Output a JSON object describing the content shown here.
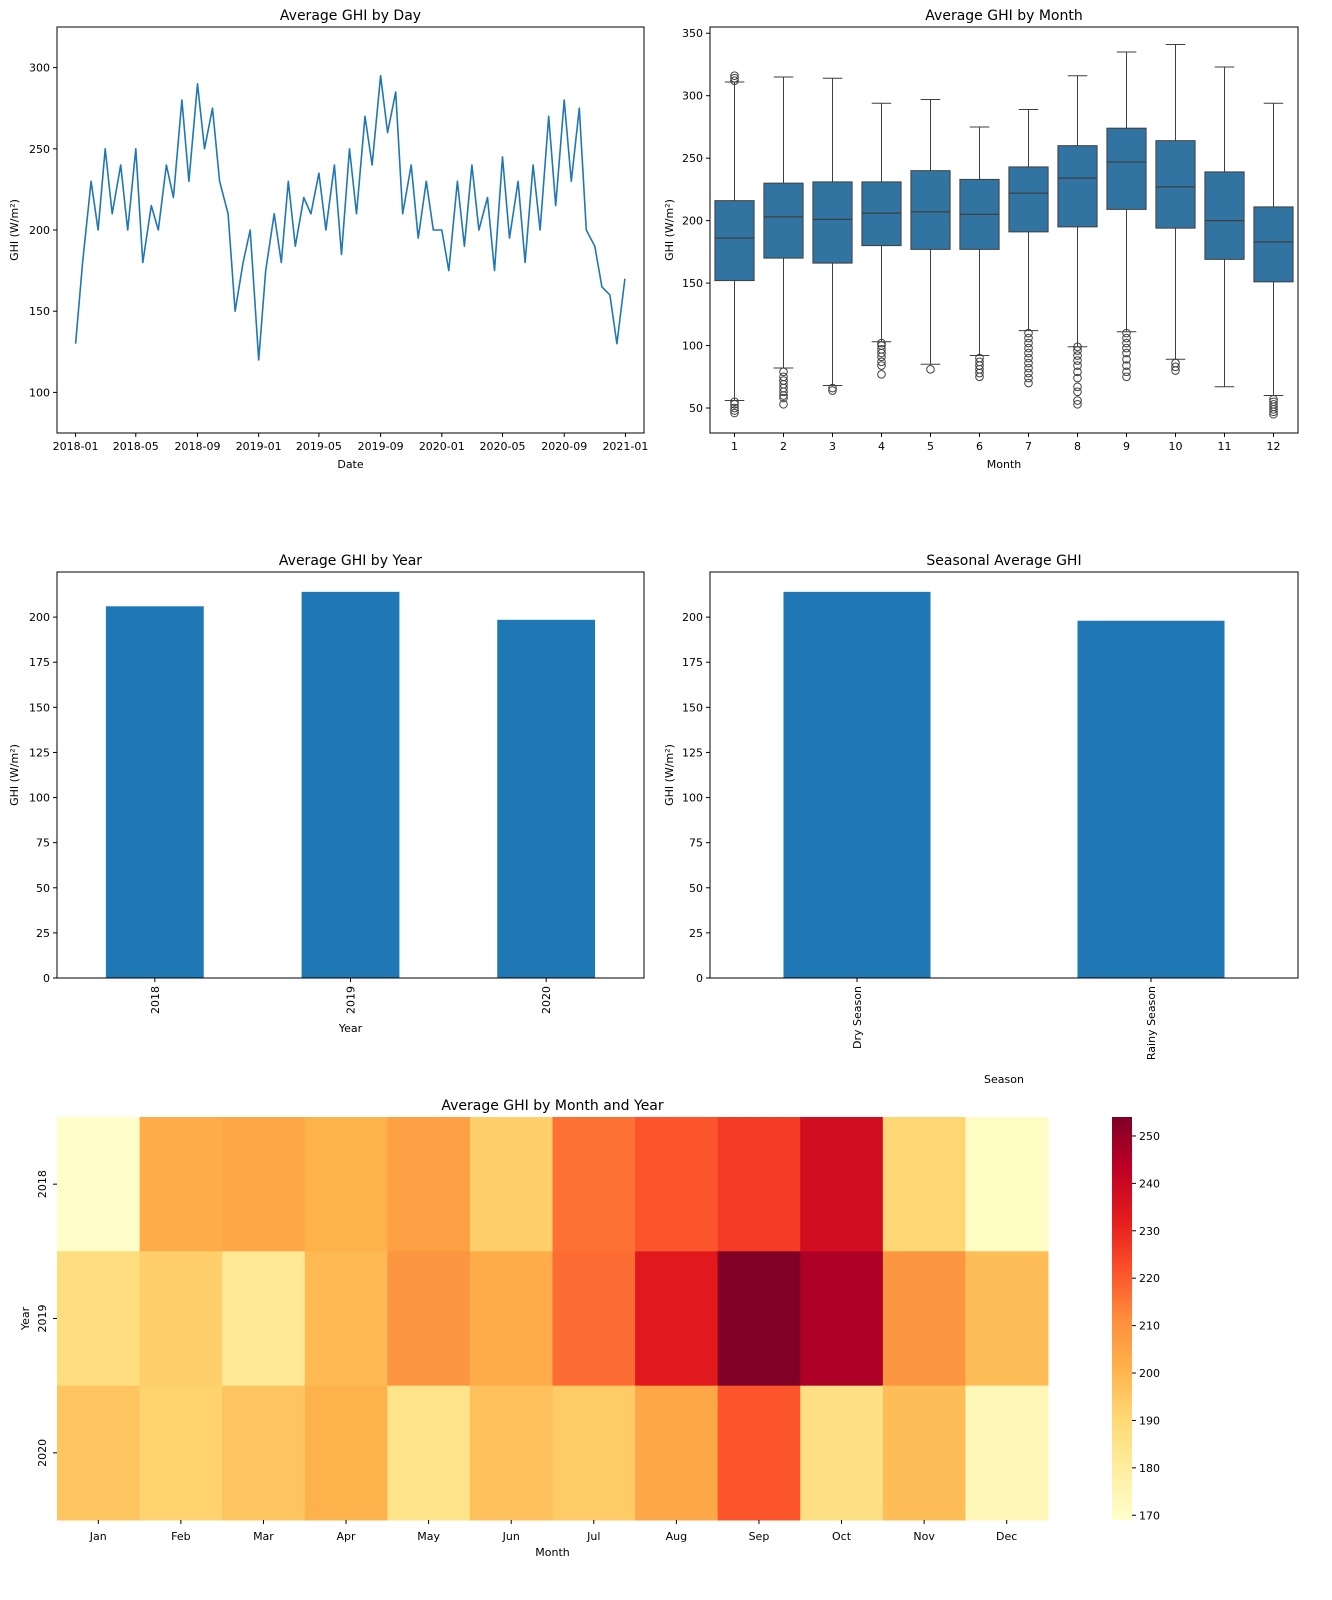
{
  "chart_data": [
    {
      "type": "line",
      "title": "Average GHI by Day",
      "xlabel": "Date",
      "ylabel": "GHI (W/m²)",
      "xlim": [
        "2017-11-25",
        "2021-02-07"
      ],
      "ylim": [
        75,
        325
      ],
      "xtick_labels": [
        "2018-01",
        "2018-05",
        "2018-09",
        "2019-01",
        "2019-05",
        "2019-09",
        "2020-01",
        "2020-05",
        "2020-09",
        "2021-01"
      ],
      "yticks": [
        100,
        150,
        200,
        250,
        300
      ],
      "color": "#1f77b4",
      "series": [
        {
          "x": [
            "2018-01-01",
            "2018-01-15",
            "2018-02-01",
            "2018-02-15",
            "2018-03-01",
            "2018-03-15",
            "2018-04-01",
            "2018-04-15",
            "2018-05-01",
            "2018-05-15",
            "2018-06-01",
            "2018-06-15",
            "2018-07-01",
            "2018-07-15",
            "2018-08-01",
            "2018-08-15",
            "2018-09-01",
            "2018-09-15",
            "2018-10-01",
            "2018-10-15",
            "2018-11-01",
            "2018-11-15",
            "2018-12-01",
            "2018-12-15",
            "2019-01-01",
            "2019-01-15",
            "2019-02-01",
            "2019-02-15",
            "2019-03-01",
            "2019-03-15",
            "2019-04-01",
            "2019-04-15",
            "2019-05-01",
            "2019-05-15",
            "2019-06-01",
            "2019-06-15",
            "2019-07-01",
            "2019-07-15",
            "2019-08-01",
            "2019-08-15",
            "2019-09-01",
            "2019-09-15",
            "2019-10-01",
            "2019-10-15",
            "2019-11-01",
            "2019-11-15",
            "2019-12-01",
            "2019-12-15",
            "2020-01-01",
            "2020-01-15",
            "2020-02-01",
            "2020-02-15",
            "2020-03-01",
            "2020-03-15",
            "2020-04-01",
            "2020-04-15",
            "2020-05-01",
            "2020-05-15",
            "2020-06-01",
            "2020-06-15",
            "2020-07-01",
            "2020-07-15",
            "2020-08-01",
            "2020-08-15",
            "2020-09-01",
            "2020-09-15",
            "2020-10-01",
            "2020-10-15",
            "2020-11-01",
            "2020-11-15",
            "2020-12-01",
            "2020-12-15",
            "2020-12-31"
          ],
          "values": [
            130,
            180,
            230,
            200,
            250,
            210,
            240,
            200,
            250,
            180,
            215,
            200,
            240,
            220,
            280,
            230,
            290,
            250,
            275,
            230,
            210,
            150,
            180,
            200,
            120,
            175,
            210,
            180,
            230,
            190,
            220,
            210,
            235,
            200,
            240,
            185,
            250,
            210,
            270,
            240,
            295,
            260,
            285,
            210,
            240,
            195,
            230,
            200,
            200,
            175,
            230,
            190,
            240,
            200,
            220,
            175,
            245,
            195,
            230,
            180,
            240,
            200,
            270,
            215,
            280,
            230,
            275,
            200,
            190,
            165,
            160,
            130,
            170
          ]
        }
      ]
    },
    {
      "type": "box",
      "title": "Average GHI by Month",
      "xlabel": "Month",
      "ylabel": "GHI (W/m²)",
      "ylim": [
        30,
        355
      ],
      "yticks": [
        50,
        100,
        150,
        200,
        250,
        300,
        350
      ],
      "categories": [
        "1",
        "2",
        "3",
        "4",
        "5",
        "6",
        "7",
        "8",
        "9",
        "10",
        "11",
        "12"
      ],
      "color": "#3274a1",
      "boxes": [
        {
          "whislo": 56,
          "q1": 152,
          "med": 186,
          "q3": 216,
          "whishi": 311,
          "fliers": [
            46,
            48,
            50,
            53,
            55,
            312,
            314,
            316
          ]
        },
        {
          "whislo": 82,
          "q1": 170,
          "med": 203,
          "q3": 230,
          "whishi": 315,
          "fliers": [
            53,
            58,
            60,
            63,
            66,
            69,
            72,
            75,
            79
          ]
        },
        {
          "whislo": 68,
          "q1": 166,
          "med": 201,
          "q3": 231,
          "whishi": 314,
          "fliers": [
            64,
            66
          ]
        },
        {
          "whislo": 103,
          "q1": 180,
          "med": 206,
          "q3": 231,
          "whishi": 294,
          "fliers": [
            77,
            84,
            87,
            91,
            94,
            97,
            100,
            102
          ]
        },
        {
          "whislo": 85,
          "q1": 177,
          "med": 207,
          "q3": 240,
          "whishi": 297,
          "fliers": [
            81
          ]
        },
        {
          "whislo": 92,
          "q1": 177,
          "med": 205,
          "q3": 233,
          "whishi": 275,
          "fliers": [
            75,
            78,
            81,
            84,
            87,
            90
          ]
        },
        {
          "whislo": 112,
          "q1": 191,
          "med": 222,
          "q3": 243,
          "whishi": 289,
          "fliers": [
            70,
            74,
            78,
            82,
            86,
            90,
            94,
            98,
            102,
            106,
            110
          ]
        },
        {
          "whislo": 99,
          "q1": 195,
          "med": 234,
          "q3": 260,
          "whishi": 316,
          "fliers": [
            53,
            56,
            63,
            67,
            74,
            79,
            84,
            88,
            92,
            96,
            99
          ]
        },
        {
          "whislo": 111,
          "q1": 209,
          "med": 247,
          "q3": 274,
          "whishi": 335,
          "fliers": [
            75,
            79,
            84,
            89,
            94,
            98,
            102,
            106,
            110
          ]
        },
        {
          "whislo": 89,
          "q1": 194,
          "med": 227,
          "q3": 264,
          "whishi": 341,
          "fliers": [
            80,
            83,
            86
          ]
        },
        {
          "whislo": 67,
          "q1": 169,
          "med": 200,
          "q3": 239,
          "whishi": 323,
          "fliers": []
        },
        {
          "whislo": 60,
          "q1": 151,
          "med": 183,
          "q3": 211,
          "whishi": 294,
          "fliers": [
            45,
            47,
            49,
            51,
            53,
            55,
            57
          ]
        }
      ]
    },
    {
      "type": "bar",
      "title": "Average GHI by Year",
      "xlabel": "Year",
      "ylabel": "GHI (W/m²)",
      "ylim": [
        0,
        225
      ],
      "yticks": [
        0,
        25,
        50,
        75,
        100,
        125,
        150,
        175,
        200
      ],
      "categories": [
        "2018",
        "2019",
        "2020"
      ],
      "values": [
        206,
        214,
        198.5
      ],
      "color": "#1f77b4"
    },
    {
      "type": "bar",
      "title": "Seasonal Average GHI",
      "xlabel": "Season",
      "ylabel": "GHI (W/m²)",
      "ylim": [
        0,
        225
      ],
      "yticks": [
        0,
        25,
        50,
        75,
        100,
        125,
        150,
        175,
        200
      ],
      "categories": [
        "Dry Season",
        "Rainy Season"
      ],
      "values": [
        214,
        198
      ],
      "color": "#1f77b4"
    },
    {
      "type": "heatmap",
      "title": "Average GHI by Month and Year",
      "xlabel": "Month",
      "ylabel": "Year",
      "x": [
        "Jan",
        "Feb",
        "Mar",
        "Apr",
        "May",
        "Jun",
        "Jul",
        "Aug",
        "Sep",
        "Oct",
        "Nov",
        "Dec"
      ],
      "y": [
        "2018",
        "2019",
        "2020"
      ],
      "z": [
        [
          170,
          203,
          204,
          201,
          206,
          193,
          216,
          221,
          226,
          238,
          191,
          171
        ],
        [
          188,
          193,
          182,
          199,
          209,
          203,
          217,
          233,
          254,
          246,
          209,
          198
        ],
        [
          196,
          192,
          196,
          201,
          185,
          197,
          194,
          204,
          221,
          187,
          198,
          174
        ]
      ],
      "colormap": "YlOrRd",
      "colorbar_range": [
        169,
        254
      ],
      "colorbar_ticks": [
        170,
        180,
        190,
        200,
        210,
        220,
        230,
        240,
        250
      ]
    }
  ]
}
